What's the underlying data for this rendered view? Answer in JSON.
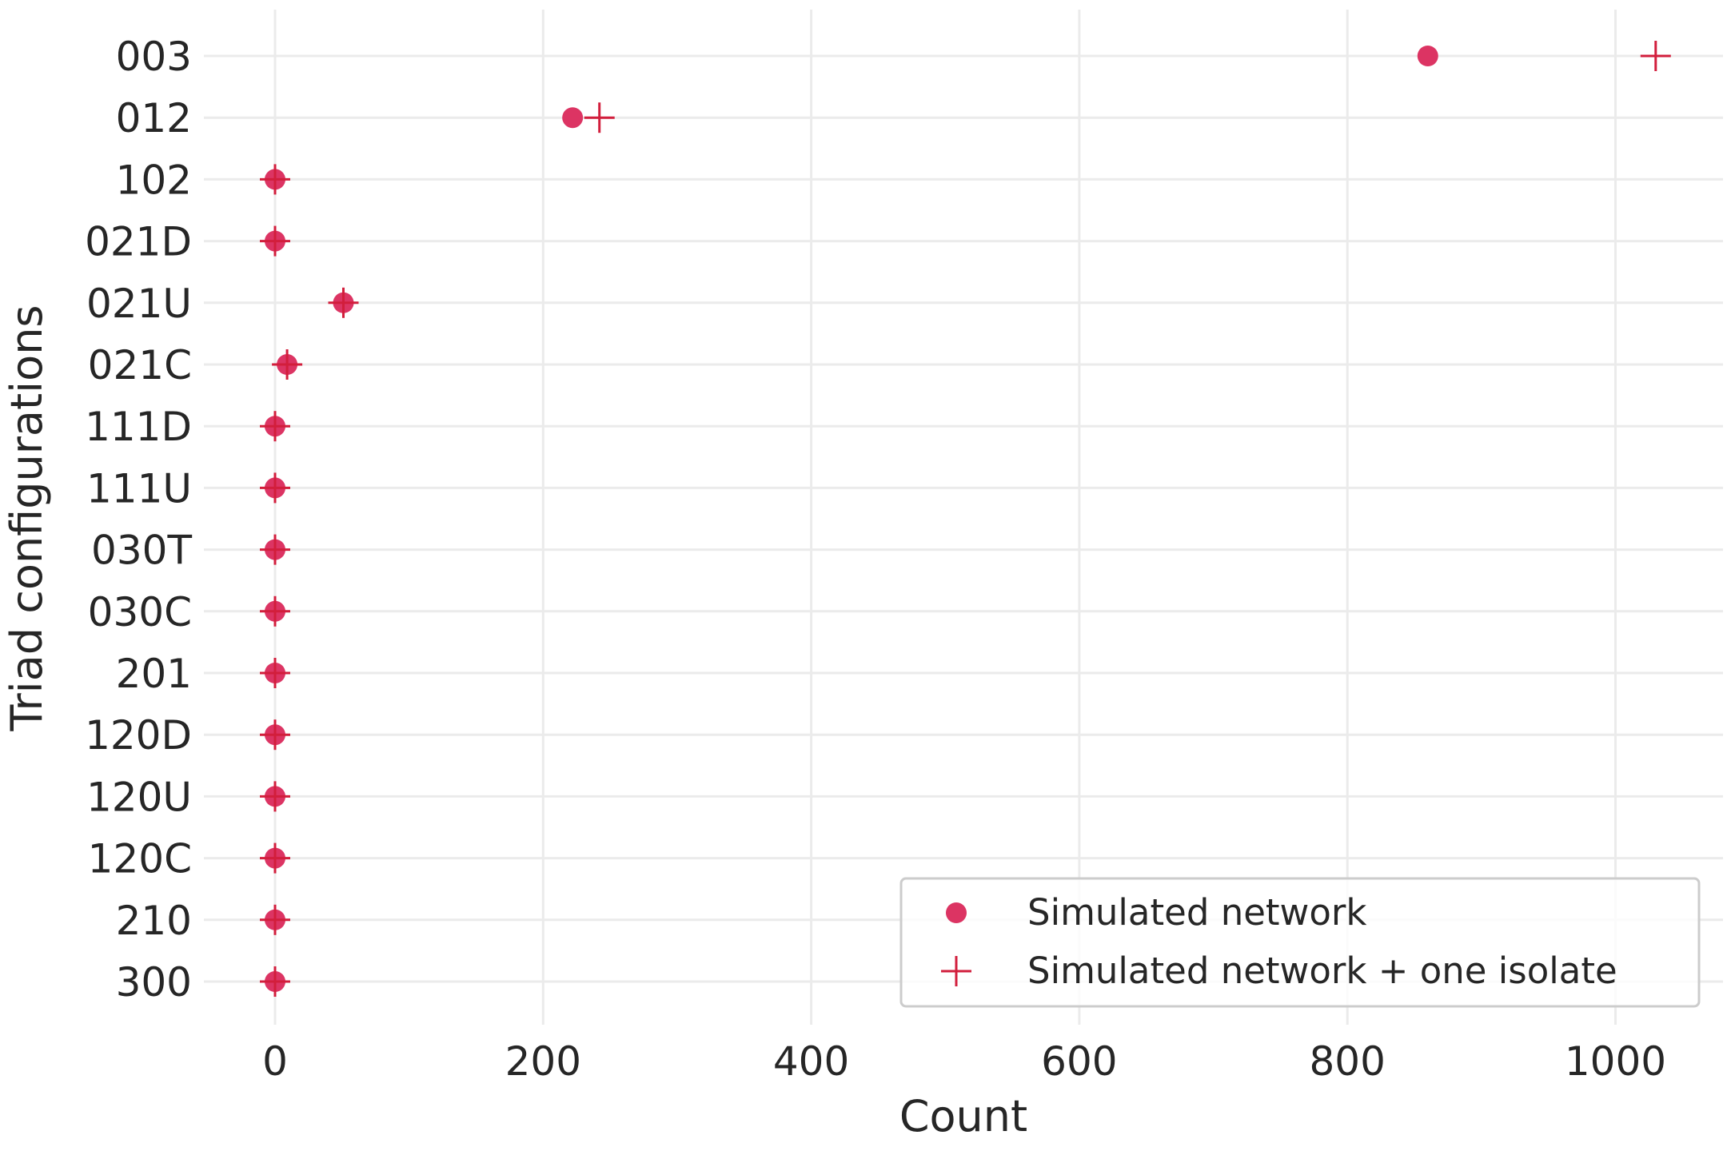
{
  "chart_data": {
    "type": "scatter",
    "orientation": "horizontal",
    "xlabel": "Count",
    "ylabel": "Triad configurations",
    "xlim": [
      -55,
      1080
    ],
    "xticks": [
      0,
      200,
      400,
      600,
      800,
      1000
    ],
    "categories": [
      "003",
      "012",
      "102",
      "021D",
      "021U",
      "021C",
      "111D",
      "111U",
      "030T",
      "030C",
      "201",
      "120D",
      "120U",
      "120C",
      "210",
      "300"
    ],
    "series": [
      {
        "name": "Simulated network",
        "marker": "circle",
        "color": "#dc3463",
        "values": [
          860,
          222,
          0,
          0,
          51,
          9,
          0,
          0,
          0,
          0,
          0,
          0,
          0,
          0,
          0,
          0
        ]
      },
      {
        "name": "Simulated network + one isolate",
        "marker": "plus",
        "color": "#d21e3c",
        "values": [
          1030,
          242,
          0,
          0,
          51,
          9,
          0,
          0,
          0,
          0,
          0,
          0,
          0,
          0,
          0,
          0
        ]
      }
    ],
    "grid": true,
    "legend_position": "bottom-right"
  }
}
